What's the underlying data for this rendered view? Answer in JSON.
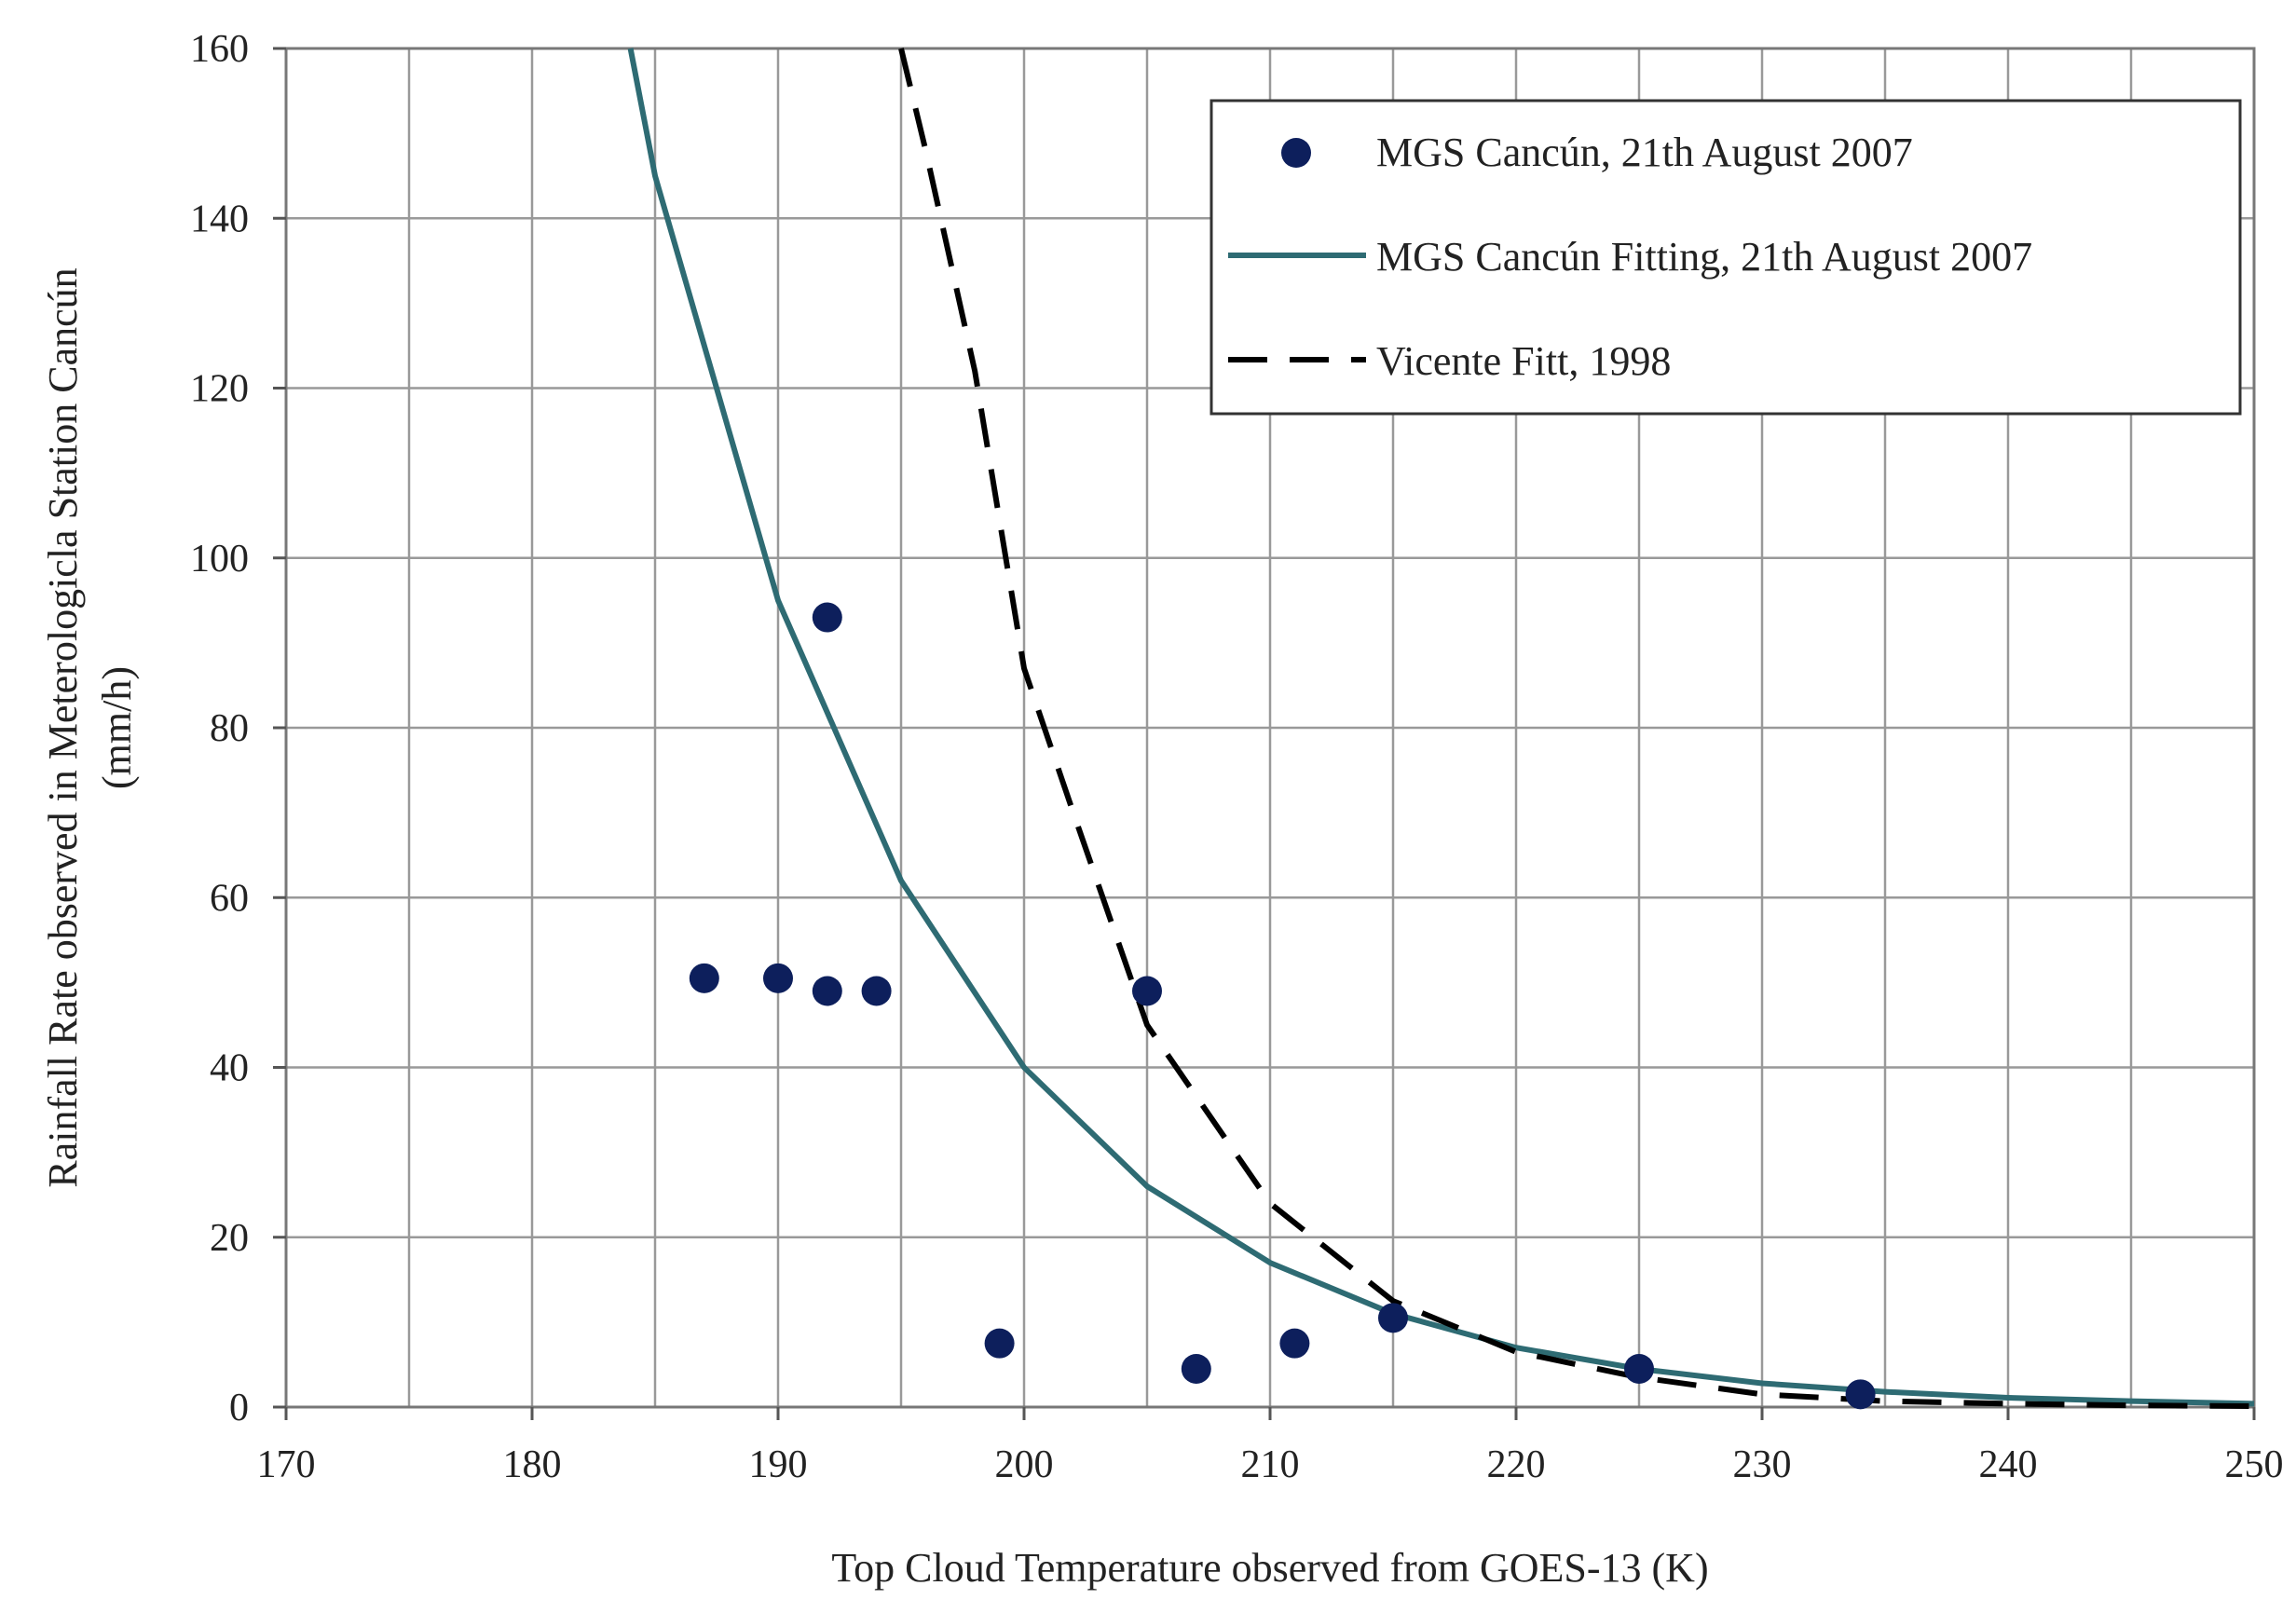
{
  "chart_data": {
    "type": "scatter",
    "title": "",
    "xlabel": "Top Cloud Temperature observed from GOES-13  (K)",
    "ylabel_line1": "Rainfall Rate observed in Meterologicla  Station Cancún",
    "ylabel_line2": "(mm/h)",
    "xlim": [
      170,
      250
    ],
    "ylim": [
      0,
      160
    ],
    "xticks": [
      170,
      180,
      190,
      200,
      210,
      220,
      230,
      240,
      250
    ],
    "yticks": [
      0,
      20,
      40,
      60,
      80,
      100,
      120,
      140,
      160
    ],
    "x_minor_gridlines": [
      175,
      185,
      195,
      205,
      215,
      225,
      235,
      245
    ],
    "grid": true,
    "legend_position": "top-right",
    "series": [
      {
        "name": "MGS Cancún, 21th August 2007",
        "kind": "scatter",
        "color": "#0d1f5c",
        "points": [
          [
            187,
            50.5
          ],
          [
            190,
            50.5
          ],
          [
            192,
            93
          ],
          [
            192,
            49
          ],
          [
            194,
            49
          ],
          [
            199,
            7.5
          ],
          [
            205,
            49
          ],
          [
            207,
            4.5
          ],
          [
            211,
            7.5
          ],
          [
            215,
            10.5
          ],
          [
            225,
            4.5
          ],
          [
            234,
            1.5
          ]
        ]
      },
      {
        "name": "MGS Cancún Fitting, 21th August 2007",
        "kind": "line",
        "style": "solid",
        "color": "#2e6b73",
        "points": [
          [
            184,
            160
          ],
          [
            185,
            145
          ],
          [
            190,
            95
          ],
          [
            195,
            62
          ],
          [
            200,
            40
          ],
          [
            205,
            26
          ],
          [
            210,
            17
          ],
          [
            215,
            11
          ],
          [
            220,
            7
          ],
          [
            225,
            4.5
          ],
          [
            230,
            2.8
          ],
          [
            235,
            1.8
          ],
          [
            240,
            1.1
          ],
          [
            245,
            0.7
          ],
          [
            250,
            0.4
          ]
        ]
      },
      {
        "name": "Vicente Fitt, 1998",
        "kind": "line",
        "style": "dashed",
        "color": "#000000",
        "points": [
          [
            195,
            160
          ],
          [
            196,
            148
          ],
          [
            198,
            122
          ],
          [
            200,
            87
          ],
          [
            202,
            70
          ],
          [
            205,
            45
          ],
          [
            210,
            24
          ],
          [
            215,
            12.5
          ],
          [
            220,
            6.5
          ],
          [
            225,
            3.5
          ],
          [
            230,
            1.5
          ],
          [
            235,
            0.7
          ],
          [
            240,
            0.4
          ],
          [
            245,
            0.2
          ],
          [
            250,
            0.1
          ]
        ]
      }
    ]
  }
}
